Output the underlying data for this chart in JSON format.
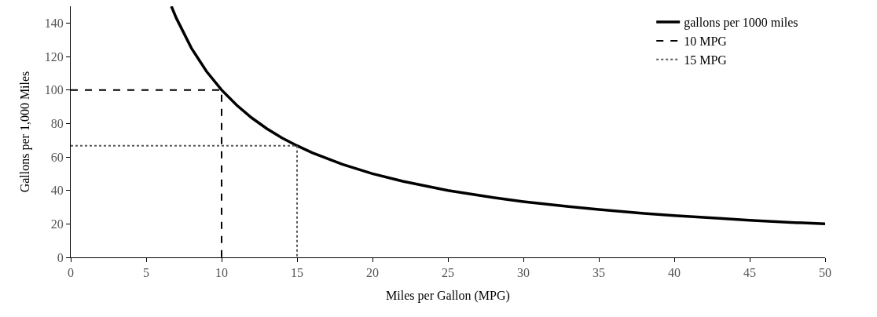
{
  "chart_data": {
    "type": "line",
    "xlabel": "Miles per Gallon (MPG)",
    "ylabel": "Gallons per 1,000 Miles",
    "series": [
      {
        "name": "gallons per 1000 miles",
        "color": "#000000",
        "line_style": "solid",
        "x": [
          6.67,
          7,
          8,
          9,
          10,
          11,
          12,
          13,
          14,
          15,
          16,
          18,
          20,
          22,
          25,
          28,
          30,
          33,
          35,
          38,
          40,
          43,
          45,
          48,
          50
        ],
        "values": [
          150,
          142.9,
          125,
          111.1,
          100,
          90.9,
          83.3,
          76.9,
          71.4,
          66.7,
          62.5,
          55.6,
          50,
          45.5,
          40,
          35.7,
          33.3,
          30.3,
          28.6,
          26.3,
          25,
          23.3,
          22.2,
          20.8,
          20
        ]
      },
      {
        "name": "10 MPG",
        "color": "#000000",
        "line_style": "dashed",
        "x": [
          0,
          10,
          10
        ],
        "values": [
          100,
          100,
          0
        ]
      },
      {
        "name": "15 MPG",
        "color": "#595959",
        "line_style": "dotted",
        "x": [
          0,
          15,
          15
        ],
        "values": [
          66.7,
          66.7,
          0
        ]
      }
    ],
    "xlim": [
      0,
      50
    ],
    "xticks": [
      0,
      5,
      10,
      15,
      20,
      25,
      30,
      35,
      40,
      45,
      50
    ],
    "ylim": [
      0,
      150
    ],
    "yticks": [
      0,
      20,
      40,
      60,
      80,
      100,
      120,
      140
    ],
    "legend": "top right",
    "marker": "none"
  }
}
